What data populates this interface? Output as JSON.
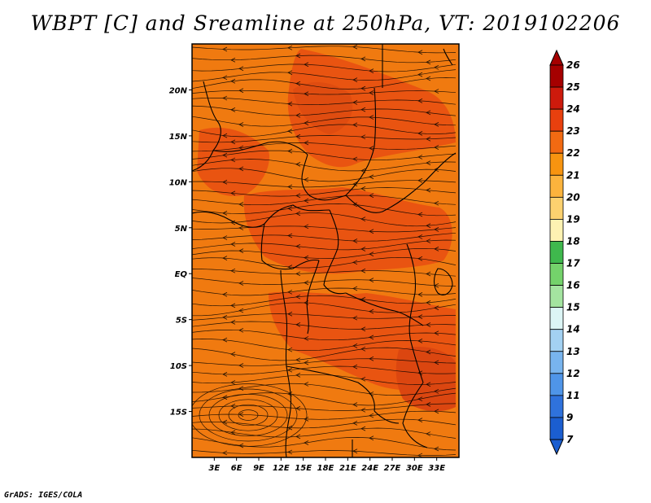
{
  "title": "WBPT [C] and Sreamline at 250hPa, VT: 2019102206",
  "credit": "GrADS: IGES/COLA",
  "map": {
    "lat_labels": [
      "20N",
      "15N",
      "10N",
      "5N",
      "EQ",
      "5S",
      "10S",
      "15S"
    ],
    "lon_labels": [
      "3E",
      "6E",
      "9E",
      "12E",
      "15E",
      "18E",
      "21E",
      "24E",
      "27E",
      "30E",
      "33E"
    ],
    "lat_range": [
      -20,
      25
    ],
    "lon_range": [
      0,
      36
    ],
    "fill_color": "#f07a10",
    "warm_color": "#e84e12"
  },
  "colorbar": {
    "labels": [
      "26",
      "25",
      "24",
      "23",
      "22",
      "21",
      "20",
      "19",
      "18",
      "17",
      "16",
      "15",
      "14",
      "13",
      "12",
      "11",
      "9",
      "7"
    ],
    "colors": [
      "#a50000",
      "#cd1a0c",
      "#e8400e",
      "#f26a12",
      "#f79410",
      "#fbb33d",
      "#fcd16f",
      "#fdf2b2",
      "#3fb84d",
      "#74d26b",
      "#a4e4a0",
      "#dcf5f5",
      "#a3d1f2",
      "#78b4ee",
      "#4f95e8",
      "#2f72dc",
      "#1b5ed0"
    ]
  }
}
